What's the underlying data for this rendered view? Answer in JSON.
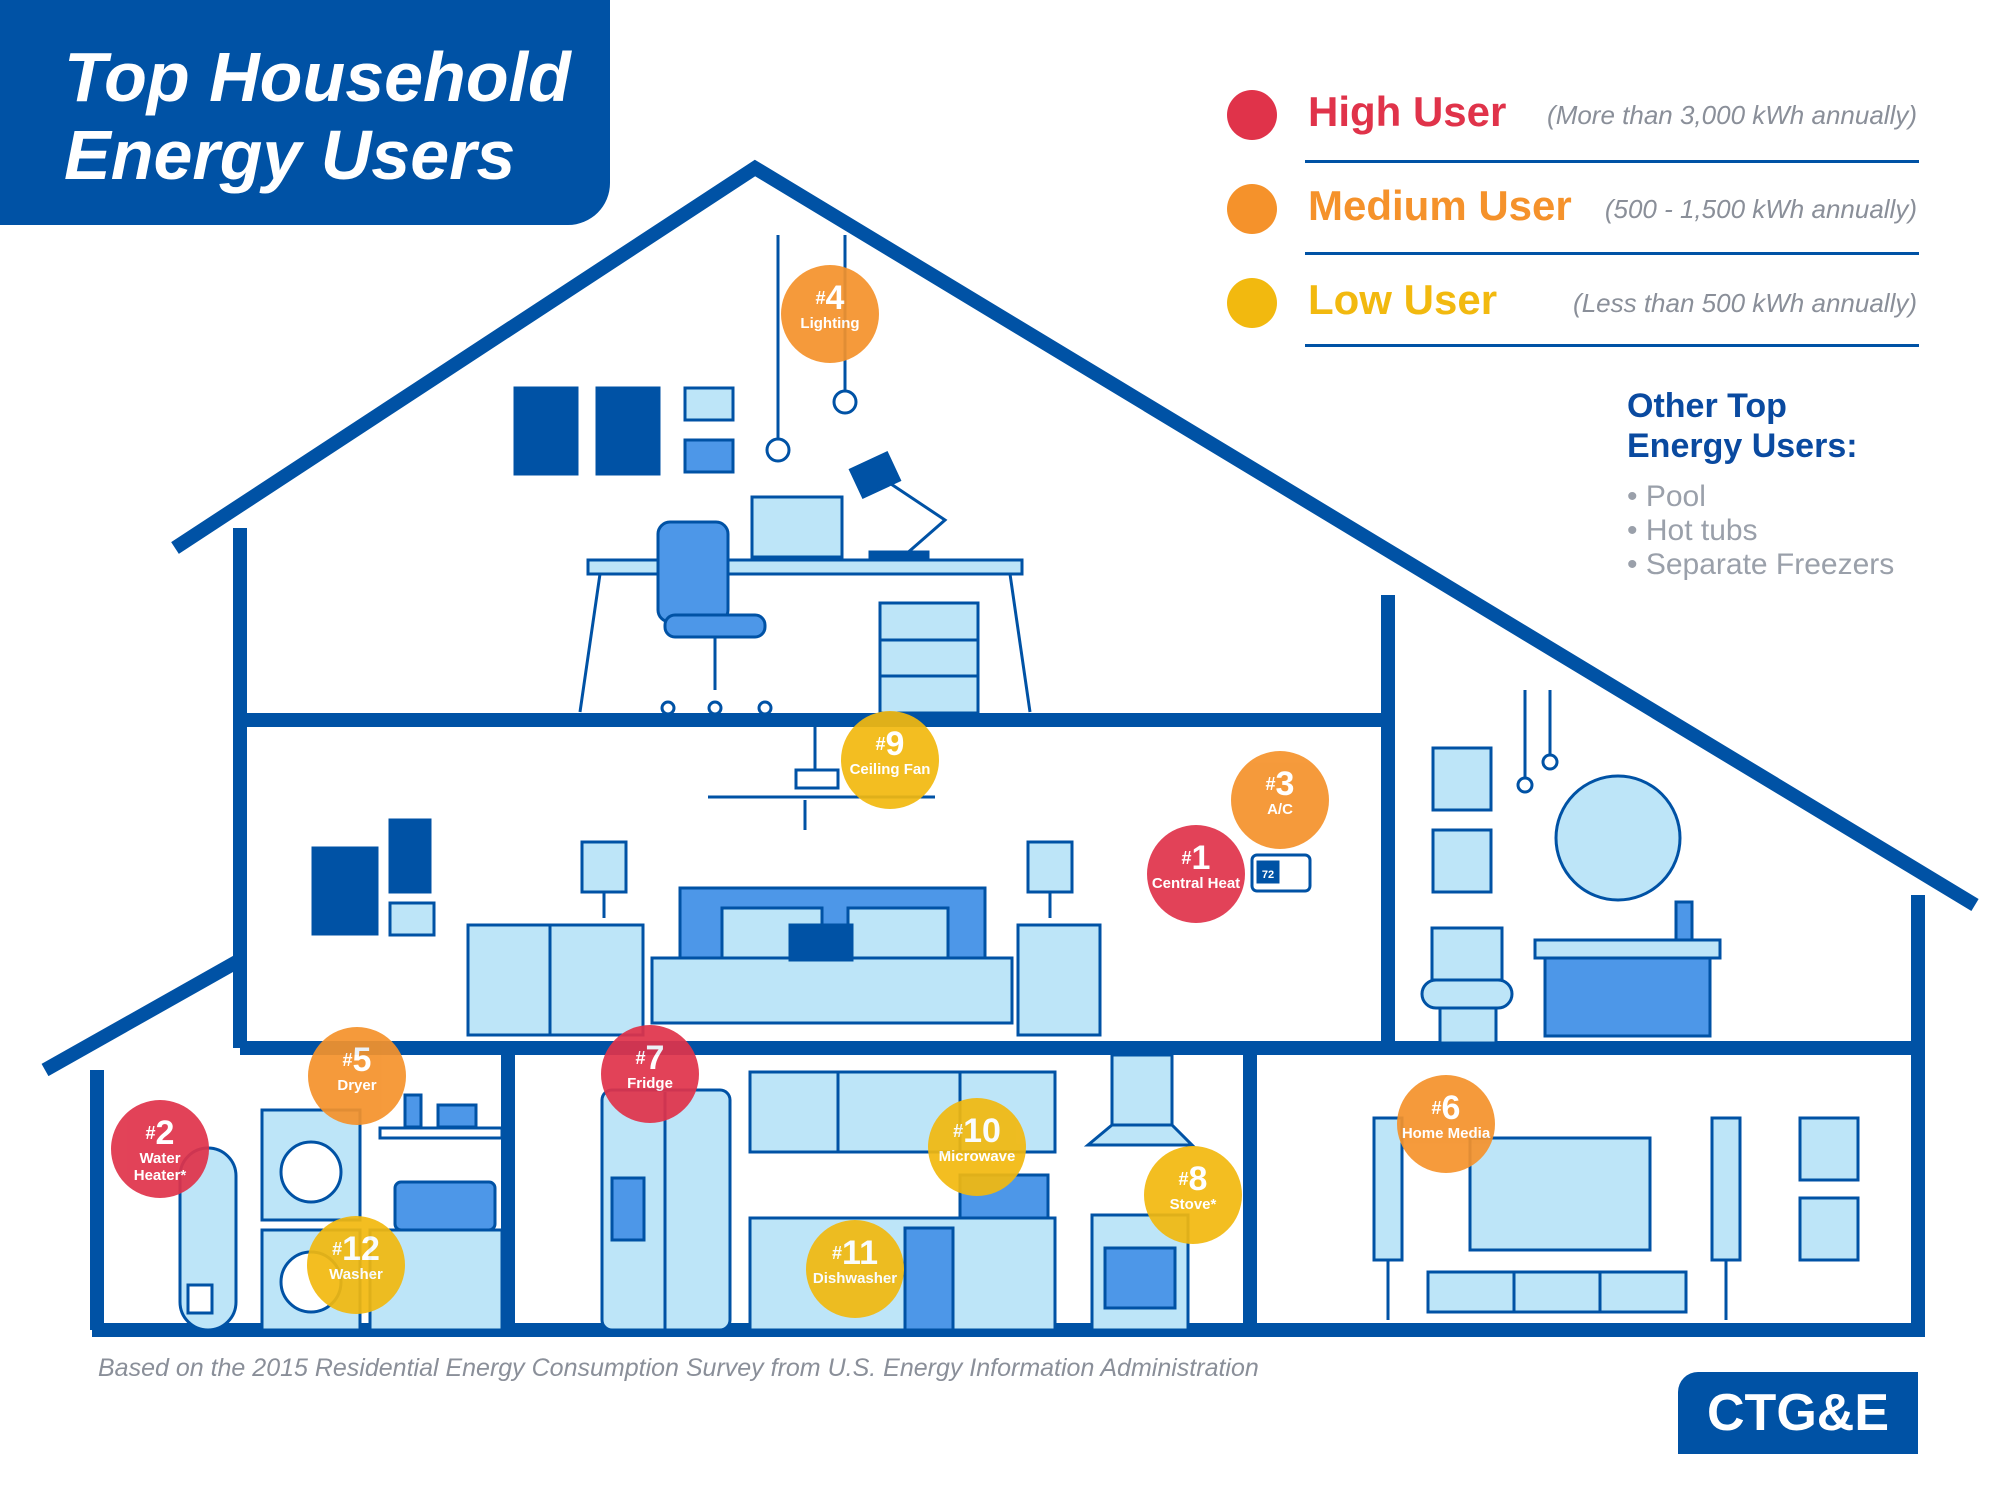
{
  "title": {
    "line1": "Top Household",
    "line2": "Energy Users"
  },
  "colors": {
    "brand": "#0052a5",
    "high": "#e0334a",
    "medium": "#f5922b",
    "low": "#f2b90f",
    "light_blue": "#bde5f8",
    "mid_blue": "#4d97e8"
  },
  "legend": [
    {
      "label": "High User",
      "note": "(More than 3,000 kWh annually)",
      "color": "#e0334a"
    },
    {
      "label": "Medium User",
      "note": "(500 - 1,500 kWh annually)",
      "color": "#f5922b"
    },
    {
      "label": "Low User",
      "note": "(Less than 500 kWh annually)",
      "color": "#f2b90f"
    }
  ],
  "other": {
    "title_line1": "Other Top",
    "title_line2": "Energy Users:",
    "items": [
      "• Pool",
      "• Hot tubs",
      "• Separate Freezers"
    ]
  },
  "badges": [
    {
      "rank": "1",
      "label": "Central Heat",
      "level": "high"
    },
    {
      "rank": "2",
      "label": "Water Heater*",
      "level": "high"
    },
    {
      "rank": "3",
      "label": "A/C",
      "level": "medium"
    },
    {
      "rank": "4",
      "label": "Lighting",
      "level": "medium"
    },
    {
      "rank": "5",
      "label": "Dryer",
      "level": "medium"
    },
    {
      "rank": "6",
      "label": "Home Media",
      "level": "medium"
    },
    {
      "rank": "7",
      "label": "Fridge",
      "level": "high"
    },
    {
      "rank": "8",
      "label": "Stove*",
      "level": "low"
    },
    {
      "rank": "9",
      "label": "Ceiling Fan",
      "level": "low"
    },
    {
      "rank": "10",
      "label": "Microwave",
      "level": "low"
    },
    {
      "rank": "11",
      "label": "Dishwasher",
      "level": "low"
    },
    {
      "rank": "12",
      "label": "Washer",
      "level": "low"
    }
  ],
  "thermostat": "72",
  "footnote": "Based on the 2015 Residential Energy Consumption Survey from U.S. Energy Information Administration",
  "logo": "CTG&E"
}
